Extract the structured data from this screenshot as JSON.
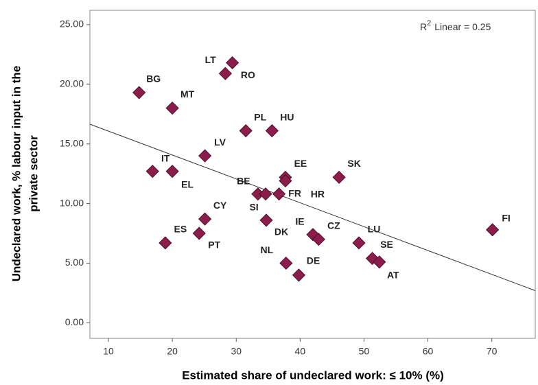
{
  "chart_data": {
    "type": "scatter",
    "xlabel": "Estimated share of undeclared work: ≤ 10% (%)",
    "ylabel": [
      "Undeclared work, % labour input in the",
      "private sector"
    ],
    "annotation": {
      "base": "R",
      "sup": "2",
      "text": "Linear = 0.25"
    },
    "labels": [
      "BG",
      "LT",
      "RO",
      "MT",
      "PL",
      "HU",
      "LV",
      "IT",
      "EL",
      "EE",
      "HR",
      "SK",
      "BE",
      "SI",
      "FR",
      "CY",
      "DK",
      "ES",
      "PT",
      "IE",
      "CZ",
      "LU",
      "FI",
      "SE",
      "AT",
      "NL",
      "DE"
    ],
    "x": [
      14.8,
      29.4,
      28.3,
      20.0,
      31.5,
      35.6,
      25.1,
      16.9,
      20.0,
      37.7,
      37.7,
      46.1,
      33.4,
      34.6,
      36.7,
      25.1,
      34.7,
      18.9,
      24.2,
      42.0,
      42.9,
      49.2,
      70.1,
      51.3,
      52.4,
      37.8,
      39.8
    ],
    "y": [
      19.3,
      21.8,
      20.9,
      18.0,
      16.1,
      16.1,
      14.0,
      12.7,
      12.7,
      12.2,
      11.9,
      12.2,
      10.8,
      10.8,
      10.8,
      8.7,
      8.6,
      6.7,
      7.5,
      7.4,
      7.0,
      6.7,
      7.8,
      5.4,
      5.1,
      5.0,
      4.0
    ],
    "color": "#8b1c4c",
    "fit_line": {
      "x": [
        7.1,
        76.8
      ],
      "y": [
        16.65,
        2.7
      ]
    },
    "xlim": [
      7.1,
      76.8
    ],
    "ylim": [
      -1.3,
      26.2
    ],
    "xticks": [
      10,
      20,
      30,
      40,
      50,
      60,
      70
    ],
    "yticks": [
      {
        "value": 0,
        "label": "0.00"
      },
      {
        "value": 5,
        "label": "5.00"
      },
      {
        "value": 10,
        "label": "10.00"
      },
      {
        "value": 15,
        "label": "15.00"
      },
      {
        "value": 20,
        "label": "20.00"
      },
      {
        "value": 25,
        "label": "25.00"
      }
    ]
  }
}
